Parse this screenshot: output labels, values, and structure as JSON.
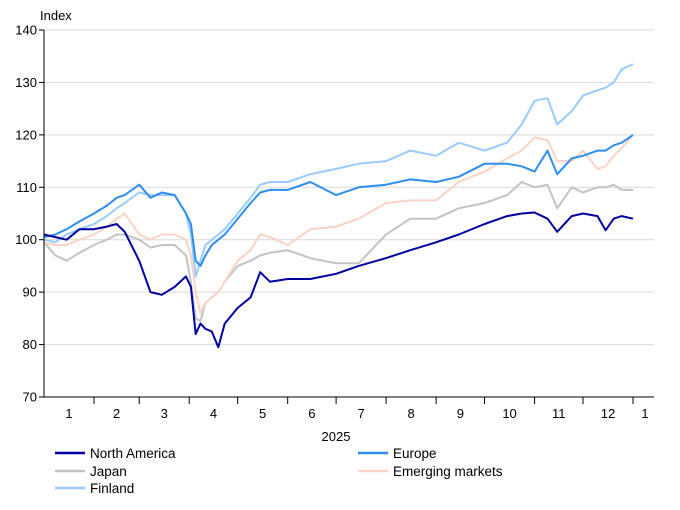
{
  "chart_data": {
    "type": "line",
    "ylabel": "Index",
    "xlabel": "2025",
    "ylim": [
      70,
      140
    ],
    "yticks": [
      70,
      80,
      90,
      100,
      110,
      120,
      130,
      140
    ],
    "xlim": [
      "2025-01-01",
      "2026-01-14"
    ],
    "xtick_labels": [
      "1",
      "2",
      "3",
      "4",
      "5",
      "6",
      "7",
      "8",
      "9",
      "10",
      "11",
      "12",
      "1"
    ],
    "grid": "horizontal",
    "legend_position": "bottom",
    "x": [
      "2025-01-01",
      "2025-01-08",
      "2025-01-15",
      "2025-01-23",
      "2025-02-01",
      "2025-02-09",
      "2025-02-15",
      "2025-02-20",
      "2025-03-01",
      "2025-03-08",
      "2025-03-15",
      "2025-03-23",
      "2025-03-30",
      "2025-04-02",
      "2025-04-05",
      "2025-04-08",
      "2025-04-11",
      "2025-04-15",
      "2025-04-19",
      "2025-04-23",
      "2025-05-01",
      "2025-05-09",
      "2025-05-15",
      "2025-05-21",
      "2025-06-01",
      "2025-06-15",
      "2025-07-01",
      "2025-07-15",
      "2025-08-01",
      "2025-08-16",
      "2025-09-01",
      "2025-09-15",
      "2025-10-01",
      "2025-10-15",
      "2025-10-24",
      "2025-11-01",
      "2025-11-09",
      "2025-11-15",
      "2025-11-24",
      "2025-12-01",
      "2025-12-10",
      "2025-12-15",
      "2025-12-20",
      "2025-12-25",
      "2026-01-01"
    ],
    "series": [
      {
        "name": "Japan",
        "color": "#c3c3c3",
        "values": [
          99.5,
          97,
          96,
          97.5,
          99,
          100,
          101,
          101,
          100,
          98.5,
          99,
          99,
          97,
          92,
          85,
          84.5,
          88,
          89,
          90,
          92,
          95,
          96,
          97,
          97.5,
          98,
          96.5,
          95.5,
          95.5,
          101,
          104,
          104,
          106,
          107,
          108.5,
          111,
          110,
          110.5,
          106,
          110,
          109,
          110,
          110,
          110.5,
          109.5,
          109.5
        ]
      },
      {
        "name": "Emerging markets",
        "color": "#fbd3c4",
        "values": [
          99.5,
          99,
          99,
          100,
          101,
          102.5,
          104,
          105,
          101,
          100,
          101,
          101,
          100,
          97,
          90,
          86,
          88,
          89,
          90,
          92,
          96,
          98,
          101,
          100.5,
          99,
          102,
          102.5,
          104,
          107,
          107.5,
          107.5,
          111,
          113,
          115.5,
          117,
          119.5,
          119,
          115,
          115,
          117,
          113.5,
          114,
          116,
          117.5,
          120
        ]
      },
      {
        "name": "Finland",
        "color": "#99cbff",
        "values": [
          100,
          99.5,
          101,
          102,
          103,
          104.5,
          106,
          107,
          109,
          108.5,
          108.5,
          108.5,
          105,
          101,
          93,
          96,
          99,
          100,
          101,
          102,
          105,
          108,
          110.5,
          111,
          111,
          112.5,
          113.5,
          114.5,
          115,
          117,
          116,
          118.5,
          117,
          118.5,
          122,
          126.5,
          127,
          122,
          124.5,
          127.5,
          128.5,
          129,
          130,
          132.5,
          133.5
        ]
      },
      {
        "name": "Europe",
        "color": "#2e8ef0",
        "values": [
          100.5,
          101,
          102,
          103.5,
          105,
          106.5,
          108,
          108.5,
          110.5,
          108,
          109,
          108.5,
          105,
          103,
          96,
          95,
          97,
          99,
          100,
          101,
          104,
          107,
          109,
          109.5,
          109.5,
          111,
          108.5,
          110,
          110.5,
          111.5,
          111,
          112,
          114.5,
          114.5,
          114,
          113,
          117,
          112.5,
          115.5,
          116,
          117,
          117,
          118,
          118.5,
          120
        ]
      },
      {
        "name": "North America",
        "color": "#0000a0",
        "values": [
          101,
          100.5,
          100,
          102,
          102,
          102.5,
          103,
          101.5,
          96,
          90,
          89.5,
          91,
          93,
          91,
          82,
          84,
          83,
          82.5,
          79.5,
          84,
          87,
          89,
          93.8,
          92,
          92.5,
          92.5,
          93.5,
          95,
          96.5,
          98,
          99.5,
          101,
          103,
          104.5,
          105,
          105.2,
          104,
          101.5,
          104.5,
          105,
          104.5,
          101.8,
          104,
          104.5,
          104
        ]
      }
    ],
    "legend_order": [
      "North America",
      "Europe",
      "Japan",
      "Emerging markets",
      "Finland"
    ]
  }
}
